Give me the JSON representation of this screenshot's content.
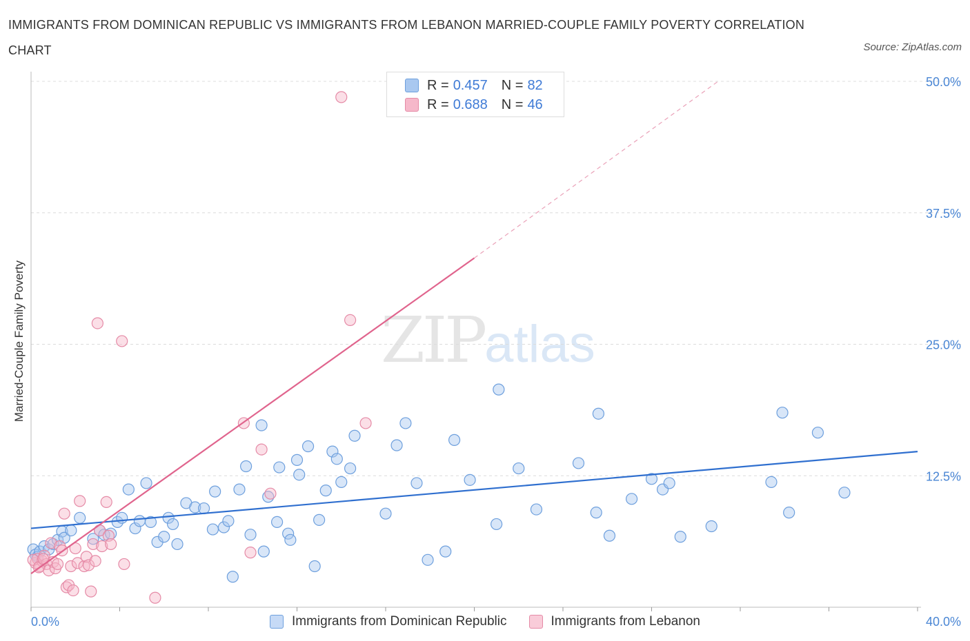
{
  "title": "IMMIGRANTS FROM DOMINICAN REPUBLIC VS IMMIGRANTS FROM LEBANON MARRIED-COUPLE FAMILY POVERTY CORRELATION CHART",
  "source": "Source: ZipAtlas.com",
  "watermark": {
    "zip": "ZIP",
    "atlas": "atlas"
  },
  "legend": {
    "r_label": "R =",
    "n_label": "N =",
    "series": [
      {
        "name": "Immigrants from Dominican Republic",
        "r": "0.457",
        "n": "82",
        "color": "#a9c8f0",
        "stroke": "#6d9fdd",
        "line": "#2f6fcf"
      },
      {
        "name": "Immigrants from Lebanon",
        "r": "0.688",
        "n": "46",
        "color": "#f6b8ca",
        "stroke": "#e58aa6",
        "line": "#e0648d"
      }
    ]
  },
  "chart_data": {
    "type": "scatter",
    "title": "IMMIGRANTS FROM DOMINICAN REPUBLIC VS IMMIGRANTS FROM LEBANON MARRIED-COUPLE FAMILY POVERTY CORRELATION CHART",
    "xlabel": "",
    "ylabel": "Married-Couple Family Poverty",
    "xlim": [
      0,
      40
    ],
    "ylim": [
      0,
      50
    ],
    "x_tick_labels": [
      "0.0%",
      "40.0%"
    ],
    "y_tick_labels": [
      "12.5%",
      "25.0%",
      "37.5%",
      "50.0%"
    ],
    "y_ticks": [
      12.5,
      25.0,
      37.5,
      50.0
    ],
    "series": [
      {
        "name": "Immigrants from Dominican Republic",
        "r": 0.457,
        "n": 82,
        "trend": {
          "x": [
            0,
            40
          ],
          "y": [
            7.5,
            14.8
          ],
          "style": "solid"
        },
        "points": [
          [
            0.1,
            5.5
          ],
          [
            0.2,
            5.0
          ],
          [
            0.3,
            4.8
          ],
          [
            0.4,
            5.3
          ],
          [
            0.6,
            5.8
          ],
          [
            0.8,
            5.5
          ],
          [
            1.0,
            6.0
          ],
          [
            1.2,
            6.4
          ],
          [
            1.4,
            7.2
          ],
          [
            1.5,
            6.6
          ],
          [
            1.8,
            7.3
          ],
          [
            2.2,
            8.5
          ],
          [
            2.8,
            6.5
          ],
          [
            3.1,
            7.3
          ],
          [
            3.3,
            6.9
          ],
          [
            3.6,
            7.0
          ],
          [
            3.9,
            8.1
          ],
          [
            4.1,
            8.5
          ],
          [
            4.4,
            11.2
          ],
          [
            4.7,
            7.5
          ],
          [
            4.9,
            8.2
          ],
          [
            5.2,
            11.8
          ],
          [
            5.4,
            8.1
          ],
          [
            5.7,
            6.2
          ],
          [
            6.0,
            6.7
          ],
          [
            6.2,
            8.5
          ],
          [
            6.4,
            7.9
          ],
          [
            6.6,
            6.0
          ],
          [
            7.0,
            9.9
          ],
          [
            7.4,
            9.5
          ],
          [
            7.8,
            9.4
          ],
          [
            8.2,
            7.4
          ],
          [
            8.3,
            11.0
          ],
          [
            8.7,
            7.6
          ],
          [
            8.9,
            8.2
          ],
          [
            9.1,
            2.9
          ],
          [
            9.4,
            11.2
          ],
          [
            9.7,
            13.4
          ],
          [
            9.9,
            6.9
          ],
          [
            10.4,
            17.3
          ],
          [
            10.5,
            5.3
          ],
          [
            10.7,
            10.5
          ],
          [
            11.1,
            8.1
          ],
          [
            11.2,
            13.3
          ],
          [
            11.6,
            7.0
          ],
          [
            11.7,
            6.4
          ],
          [
            12.0,
            14.0
          ],
          [
            12.1,
            12.6
          ],
          [
            12.5,
            15.3
          ],
          [
            12.8,
            3.9
          ],
          [
            13.0,
            8.3
          ],
          [
            13.3,
            11.1
          ],
          [
            13.6,
            14.8
          ],
          [
            13.8,
            14.1
          ],
          [
            14.0,
            11.9
          ],
          [
            14.4,
            13.2
          ],
          [
            14.6,
            16.3
          ],
          [
            16.0,
            8.9
          ],
          [
            16.5,
            15.4
          ],
          [
            16.9,
            17.5
          ],
          [
            17.4,
            11.8
          ],
          [
            17.9,
            4.5
          ],
          [
            18.7,
            5.3
          ],
          [
            19.1,
            15.9
          ],
          [
            19.8,
            12.1
          ],
          [
            21.0,
            7.9
          ],
          [
            21.1,
            20.7
          ],
          [
            22.0,
            13.2
          ],
          [
            22.8,
            9.3
          ],
          [
            24.7,
            13.7
          ],
          [
            25.5,
            9.0
          ],
          [
            25.6,
            18.4
          ],
          [
            26.1,
            6.8
          ],
          [
            27.1,
            10.3
          ],
          [
            28.0,
            12.2
          ],
          [
            28.5,
            11.2
          ],
          [
            28.8,
            11.8
          ],
          [
            29.3,
            6.7
          ],
          [
            30.7,
            7.7
          ],
          [
            33.4,
            11.9
          ],
          [
            33.9,
            18.5
          ],
          [
            34.2,
            9.0
          ],
          [
            35.5,
            16.6
          ],
          [
            36.7,
            10.9
          ]
        ]
      },
      {
        "name": "Immigrants from Lebanon",
        "r": 0.688,
        "n": 46,
        "trend": {
          "x": [
            0,
            20
          ],
          "y": [
            3.2,
            33.2
          ],
          "style": "solid",
          "extension": {
            "x": [
              20,
              31
            ],
            "y": [
              33.2,
              50.0
            ],
            "style": "dashed"
          }
        },
        "points": [
          [
            0.2,
            4.2
          ],
          [
            0.3,
            4.6
          ],
          [
            0.4,
            3.9
          ],
          [
            0.5,
            4.4
          ],
          [
            0.6,
            4.9
          ],
          [
            0.7,
            4.1
          ],
          [
            0.8,
            3.5
          ],
          [
            0.9,
            6.1
          ],
          [
            1.0,
            4.3
          ],
          [
            1.1,
            3.7
          ],
          [
            1.2,
            4.1
          ],
          [
            1.3,
            5.8
          ],
          [
            1.4,
            5.4
          ],
          [
            1.5,
            8.9
          ],
          [
            1.6,
            1.9
          ],
          [
            1.7,
            2.1
          ],
          [
            1.8,
            3.9
          ],
          [
            1.9,
            1.6
          ],
          [
            2.0,
            5.6
          ],
          [
            2.1,
            4.2
          ],
          [
            2.2,
            10.1
          ],
          [
            2.4,
            3.9
          ],
          [
            2.5,
            4.8
          ],
          [
            2.6,
            4.0
          ],
          [
            2.7,
            1.5
          ],
          [
            2.8,
            6.0
          ],
          [
            2.9,
            4.4
          ],
          [
            3.0,
            27.0
          ],
          [
            3.1,
            7.3
          ],
          [
            3.2,
            5.8
          ],
          [
            3.4,
            10.0
          ],
          [
            3.5,
            6.8
          ],
          [
            3.6,
            6.0
          ],
          [
            4.1,
            25.3
          ],
          [
            4.2,
            4.1
          ],
          [
            5.6,
            0.9
          ],
          [
            9.6,
            17.5
          ],
          [
            9.9,
            5.2
          ],
          [
            10.4,
            15.0
          ],
          [
            10.8,
            10.8
          ],
          [
            14.0,
            48.5
          ],
          [
            14.4,
            27.3
          ],
          [
            15.1,
            17.5
          ],
          [
            0.1,
            4.5
          ],
          [
            0.35,
            3.8
          ],
          [
            0.55,
            4.6
          ]
        ]
      }
    ]
  }
}
